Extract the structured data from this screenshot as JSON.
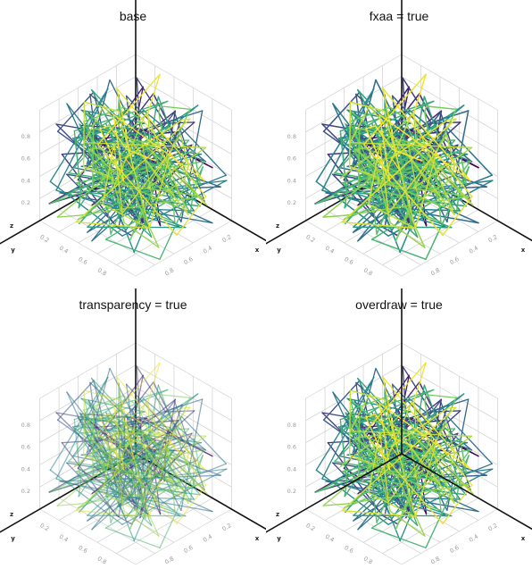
{
  "chart_data": [
    {
      "type": "line",
      "title": "base",
      "xlabel": "x",
      "ylabel": "y",
      "zlabel": "z",
      "xlim": [
        0,
        1
      ],
      "ylim": [
        0,
        1
      ],
      "zlim": [
        0,
        1
      ],
      "ticks": [
        "0.2",
        "0.4",
        "0.6",
        "0.8"
      ],
      "grid": true,
      "colormap": "viridis",
      "options": {
        "fxaa": false,
        "transparency": false,
        "overdraw": false
      }
    },
    {
      "type": "line",
      "title": "fxaa = true",
      "xlabel": "x",
      "ylabel": "y",
      "zlabel": "z",
      "xlim": [
        0,
        1
      ],
      "ylim": [
        0,
        1
      ],
      "zlim": [
        0,
        1
      ],
      "ticks": [
        "0.2",
        "0.4",
        "0.6",
        "0.8"
      ],
      "grid": true,
      "colormap": "viridis",
      "options": {
        "fxaa": true,
        "transparency": false,
        "overdraw": false
      }
    },
    {
      "type": "line",
      "title": "transparency = true",
      "xlabel": "x",
      "ylabel": "y",
      "zlabel": "z",
      "xlim": [
        0,
        1
      ],
      "ylim": [
        0,
        1
      ],
      "zlim": [
        0,
        1
      ],
      "ticks": [
        "0.2",
        "0.4",
        "0.6",
        "0.8"
      ],
      "grid": true,
      "colormap": "viridis",
      "options": {
        "fxaa": false,
        "transparency": true,
        "overdraw": false
      }
    },
    {
      "type": "line",
      "title": "overdraw = true",
      "xlabel": "x",
      "ylabel": "y",
      "zlabel": "z",
      "xlim": [
        0,
        1
      ],
      "ylim": [
        0,
        1
      ],
      "zlim": [
        0,
        1
      ],
      "ticks": [
        "0.2",
        "0.4",
        "0.6",
        "0.8"
      ],
      "grid": true,
      "colormap": "viridis",
      "options": {
        "fxaa": false,
        "transparency": false,
        "overdraw": true
      }
    }
  ],
  "colors": {
    "viridis": [
      "#440154",
      "#3b528b",
      "#21918c",
      "#5ec962",
      "#fde725"
    ],
    "axis": "#111111",
    "grid": "#cfcfcf"
  }
}
